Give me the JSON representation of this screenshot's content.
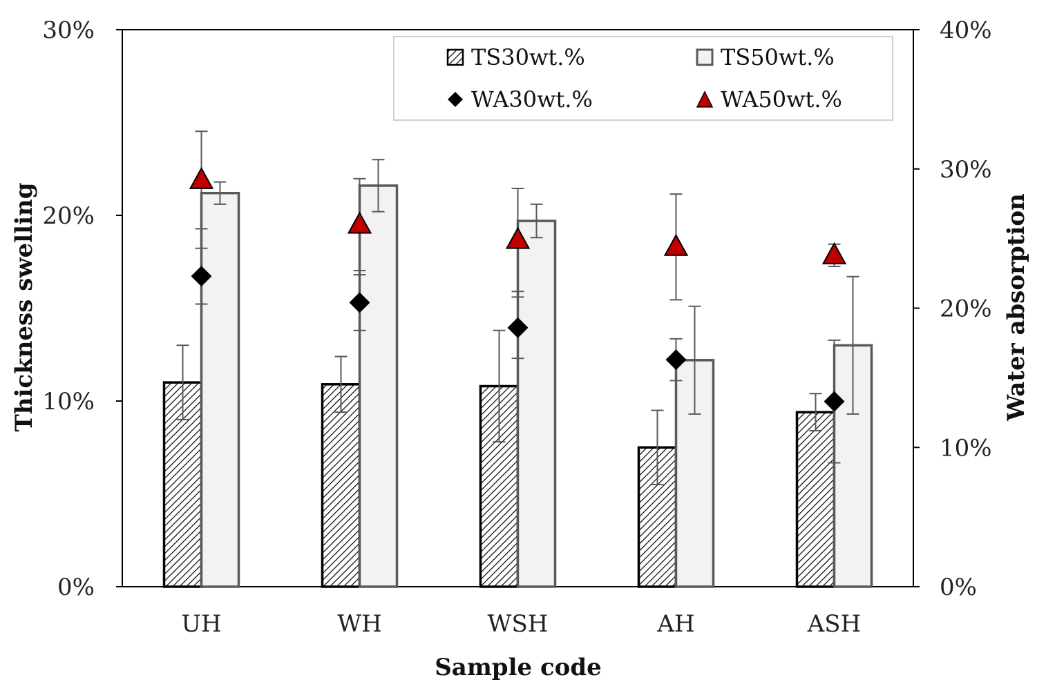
{
  "chart_data": {
    "type": "bar",
    "categories": [
      "UH",
      "WH",
      "WSH",
      "AH",
      "ASH"
    ],
    "xlabel": "Sample code",
    "ylabel": "Thickness swelling",
    "y2label": "Water absorption",
    "ylim": [
      0,
      30
    ],
    "y2lim": [
      0,
      40
    ],
    "yticks": [
      "0%",
      "10%",
      "20%",
      "30%"
    ],
    "y2ticks": [
      "0%",
      "10%",
      "20%",
      "30%",
      "40%"
    ],
    "legend_position": "top-right",
    "grid": false,
    "bar_series": [
      {
        "name": "TS30wt.%",
        "axis": "left",
        "values": [
          11.0,
          10.9,
          10.8,
          7.5,
          9.4
        ],
        "errors": [
          2.0,
          1.5,
          3.0,
          2.0,
          1.0
        ],
        "fill": "hatch",
        "color": "#000000"
      },
      {
        "name": "TS50wt.%",
        "axis": "left",
        "values": [
          21.2,
          21.6,
          19.7,
          12.2,
          13.0
        ],
        "errors": [
          0.6,
          1.4,
          0.9,
          2.9,
          3.7
        ],
        "fill": "#f2f2f2",
        "color": "#595959"
      }
    ],
    "marker_series": [
      {
        "name": "WA30wt.%",
        "axis": "right",
        "marker": "diamond",
        "color": "#000000",
        "values": [
          22.3,
          20.4,
          18.6,
          16.3,
          13.3
        ],
        "errors": [
          2.0,
          2.0,
          2.2,
          1.5,
          4.4
        ]
      },
      {
        "name": "WA50wt.%",
        "axis": "right",
        "marker": "triangle",
        "color": "#c00000",
        "values": [
          29.2,
          26.0,
          24.9,
          24.4,
          23.8
        ],
        "errors": [
          3.5,
          3.3,
          3.7,
          3.8,
          0.8
        ]
      }
    ]
  }
}
